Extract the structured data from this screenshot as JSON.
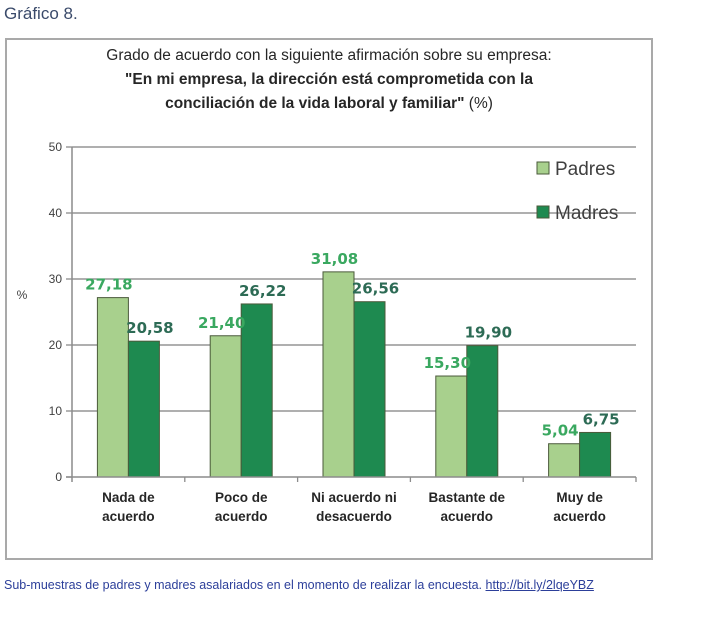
{
  "figure_label": "Gráfico 8.",
  "caption": {
    "text": "Sub-muestras de padres y madres asalariados en el momento de realizar la encuesta.",
    "link": "http://bit.ly/2lqeYBZ"
  },
  "colors": {
    "padres": "#a8d08d",
    "madres": "#1e8a50",
    "padres_label": "#3aa860",
    "madres_label": "#2d6b55",
    "axis": "#8c8c8c",
    "grid": "#7f7f7f"
  },
  "chart_data": {
    "type": "bar",
    "title_line1": "Grado de acuerdo con la siguiente afirmación sobre su empresa:",
    "title_line2": "\"En mi empresa, la dirección está comprometida con la",
    "title_line3": "conciliación de la vida laboral y familiar\"",
    "title_suffix": "(%)",
    "ylabel": "%",
    "xlabel": "",
    "ylim": [
      0,
      50
    ],
    "yticks": [
      0,
      10,
      20,
      30,
      40,
      50
    ],
    "grid": true,
    "legend_position": "top-right",
    "categories": [
      [
        "Nada de",
        "acuerdo"
      ],
      [
        "Poco de",
        "acuerdo"
      ],
      [
        "Ni acuerdo ni",
        "desacuerdo"
      ],
      [
        "Bastante de",
        "acuerdo"
      ],
      [
        "Muy de",
        "acuerdo"
      ]
    ],
    "series": [
      {
        "name": "Padres",
        "values": [
          27.18,
          21.4,
          31.08,
          15.3,
          5.04
        ],
        "labels": [
          "27,18",
          "21,40",
          "31,08",
          "15,30",
          "5,04"
        ]
      },
      {
        "name": "Madres",
        "values": [
          20.58,
          26.22,
          26.56,
          19.9,
          6.75
        ],
        "labels": [
          "20,58",
          "26,22",
          "26,56",
          "19,90",
          "6,75"
        ]
      }
    ]
  }
}
